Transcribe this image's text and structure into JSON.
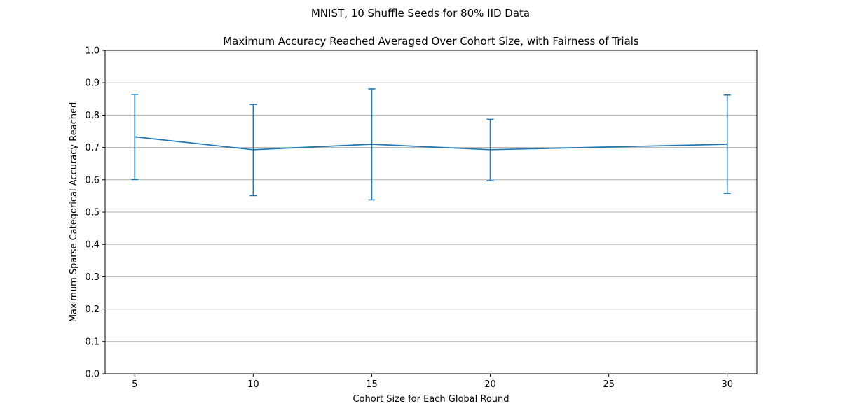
{
  "figure": {
    "suptitle": "MNIST, 10 Shuffle Seeds for 80% IID Data"
  },
  "chart_data": {
    "type": "line",
    "title": "Maximum Accuracy Reached Averaged Over Cohort Size, with Fairness of Trials",
    "xlabel": "Cohort Size for Each Global Round",
    "ylabel": "Maximum Sparse Categorical Accuracy Reached",
    "xlim": [
      3.75,
      31.25
    ],
    "ylim": [
      0.0,
      1.0
    ],
    "x_ticks": [
      5,
      10,
      15,
      20,
      25,
      30
    ],
    "y_ticks": [
      0.0,
      0.1,
      0.2,
      0.3,
      0.4,
      0.5,
      0.6,
      0.7,
      0.8,
      0.9,
      1.0
    ],
    "y_tick_labels": [
      "0.0",
      "0.1",
      "0.2",
      "0.3",
      "0.4",
      "0.5",
      "0.6",
      "0.7",
      "0.8",
      "0.9",
      "1.0"
    ],
    "grid": "horizontal",
    "series": [
      {
        "color": "#1f77b4",
        "x": [
          5,
          10,
          15,
          20,
          30
        ],
        "y": [
          0.733,
          0.693,
          0.71,
          0.693,
          0.71
        ],
        "err_low": [
          0.601,
          0.551,
          0.538,
          0.597,
          0.558
        ],
        "err_high": [
          0.864,
          0.833,
          0.881,
          0.787,
          0.862
        ]
      }
    ]
  }
}
